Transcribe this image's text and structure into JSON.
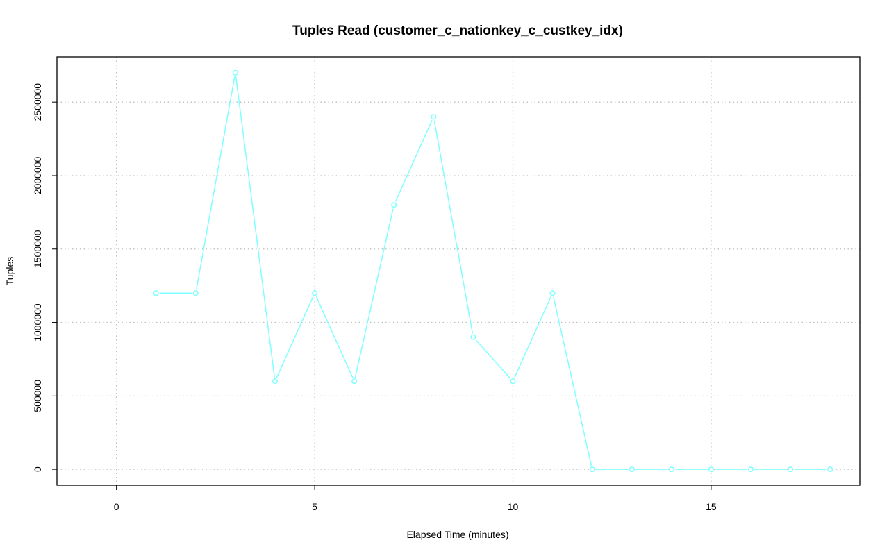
{
  "chart_data": {
    "type": "line",
    "title": "Tuples Read (customer_c_nationkey_c_custkey_idx)",
    "xlabel": "Elapsed Time (minutes)",
    "ylabel": "Tuples",
    "xlim": [
      -1.5,
      18.75
    ],
    "ylim": [
      -108000,
      2808000
    ],
    "x_ticks": [
      0,
      5,
      10,
      15
    ],
    "y_ticks": [
      0,
      500000,
      1000000,
      1500000,
      2000000,
      2500000
    ],
    "x_grid": [
      0,
      5,
      10,
      15
    ],
    "y_grid": [
      0,
      500000,
      1000000,
      1500000,
      2000000,
      2500000
    ],
    "grid": true,
    "series": [
      {
        "color": "#7fffff",
        "x": [
          1,
          2,
          3,
          4,
          5,
          6,
          7,
          8,
          9,
          10,
          11,
          12,
          13,
          14,
          15,
          16,
          17,
          18
        ],
        "values": [
          1200000,
          1200000,
          2700000,
          600000,
          1200000,
          600000,
          1800000,
          2400000,
          900000,
          600000,
          1200000,
          0,
          0,
          0,
          0,
          0,
          0,
          0
        ]
      }
    ]
  }
}
